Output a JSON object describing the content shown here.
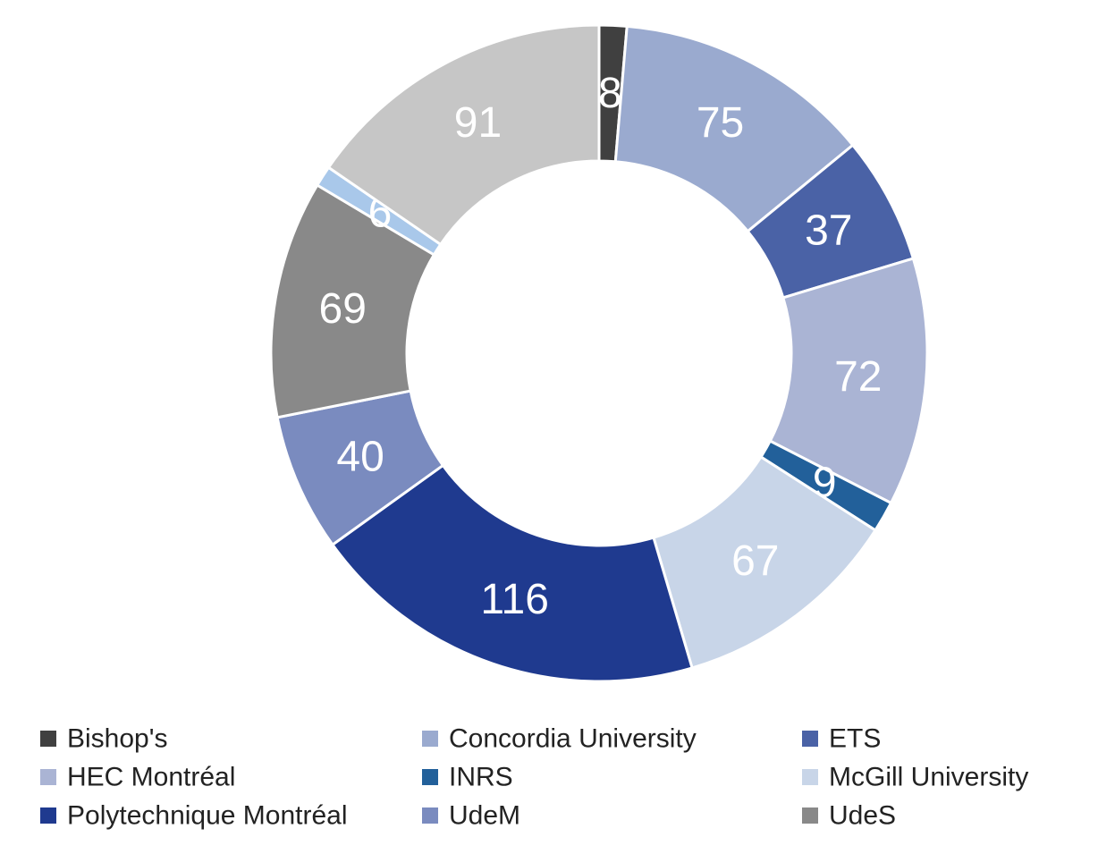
{
  "chart_data": {
    "type": "donut",
    "categories": [
      "Bishop's",
      "Concordia University",
      "ETS",
      "HEC Montréal",
      "INRS",
      "McGill University",
      "Polytechnique Montréal",
      "UdeM",
      "UdeS",
      null,
      null
    ],
    "values": [
      8,
      75,
      37,
      72,
      9,
      67,
      116,
      40,
      69,
      6,
      91
    ],
    "colors": [
      "#404040",
      "#9aaacf",
      "#4a62a6",
      "#aab4d4",
      "#22609a",
      "#c8d5e8",
      "#1f3a8f",
      "#7a8bbf",
      "#898989",
      "#a9c8ea",
      "#c6c6c6"
    ],
    "legend": "bottom"
  }
}
